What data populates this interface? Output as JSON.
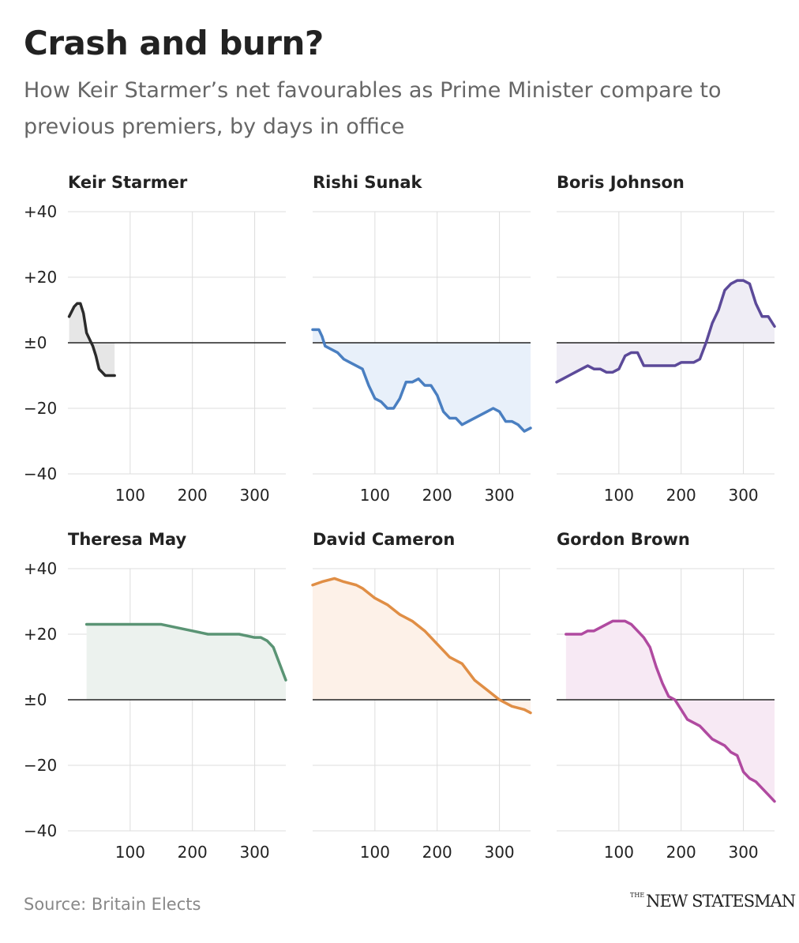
{
  "title": "Crash and burn?",
  "subtitle": "How Keir Starmer’s net favourables as Prime Minister compare to previous premiers, by days in office",
  "source": "Source: Britain Elects",
  "brand": {
    "small": "THE",
    "main": "NEW STATESMAN"
  },
  "chart_data": {
    "type": "line",
    "layout": "small-multiples 3x2",
    "ylim": [
      -40,
      40
    ],
    "yticks": [
      40,
      20,
      0,
      -20,
      -40
    ],
    "ytick_labels": [
      "+40",
      "+20",
      "±0",
      "−20",
      "−40"
    ],
    "xlim": [
      0,
      350
    ],
    "xticks": [
      100,
      200,
      300
    ],
    "xtick_labels": [
      "100",
      "200",
      "300"
    ],
    "grid": true,
    "area_fill": "between line and zero",
    "panels": [
      {
        "name": "Keir Starmer",
        "color": "#2b2b2b",
        "fill": "#e6e6e6",
        "x": [
          2,
          10,
          15,
          20,
          25,
          30,
          35,
          40,
          45,
          50,
          55,
          60,
          65,
          70,
          75
        ],
        "y": [
          8,
          11,
          12,
          12,
          9,
          3,
          1,
          -1,
          -4,
          -8,
          -9,
          -10,
          -10,
          -10,
          -10
        ]
      },
      {
        "name": "Rishi Sunak",
        "color": "#4a7fc1",
        "fill": "#e8f0fa",
        "x": [
          0,
          10,
          15,
          20,
          30,
          40,
          50,
          60,
          70,
          80,
          90,
          100,
          110,
          120,
          130,
          140,
          150,
          160,
          170,
          180,
          190,
          200,
          210,
          220,
          230,
          240,
          250,
          260,
          270,
          280,
          290,
          300,
          310,
          320,
          330,
          340,
          350
        ],
        "y": [
          4,
          4,
          2,
          -1,
          -2,
          -3,
          -5,
          -6,
          -7,
          -8,
          -13,
          -17,
          -18,
          -20,
          -20,
          -17,
          -12,
          -12,
          -11,
          -13,
          -13,
          -16,
          -21,
          -23,
          -23,
          -25,
          -24,
          -23,
          -22,
          -21,
          -20,
          -21,
          -24,
          -24,
          -25,
          -27,
          -26
        ]
      },
      {
        "name": "Boris Johnson",
        "color": "#5c4a99",
        "fill": "#efedf5",
        "x": [
          0,
          10,
          20,
          30,
          40,
          50,
          60,
          70,
          80,
          90,
          100,
          110,
          120,
          130,
          140,
          150,
          160,
          170,
          180,
          190,
          200,
          210,
          220,
          230,
          240,
          250,
          260,
          270,
          280,
          290,
          300,
          310,
          320,
          330,
          340,
          350
        ],
        "y": [
          -12,
          -11,
          -10,
          -9,
          -8,
          -7,
          -8,
          -8,
          -9,
          -9,
          -8,
          -4,
          -3,
          -3,
          -7,
          -7,
          -7,
          -7,
          -7,
          -7,
          -6,
          -6,
          -6,
          -5,
          0,
          6,
          10,
          16,
          18,
          19,
          19,
          18,
          12,
          8,
          8,
          5
        ]
      },
      {
        "name": "Theresa May",
        "color": "#5a9474",
        "fill": "#ecf2ee",
        "x": [
          30,
          50,
          100,
          150,
          175,
          200,
          225,
          250,
          275,
          300,
          310,
          320,
          330,
          340,
          350
        ],
        "y": [
          23,
          23,
          23,
          23,
          22,
          21,
          20,
          20,
          20,
          19,
          19,
          18,
          16,
          11,
          6
        ]
      },
      {
        "name": "David Cameron",
        "color": "#e08e45",
        "fill": "#fdf1e8",
        "x": [
          0,
          15,
          35,
          50,
          70,
          80,
          100,
          120,
          140,
          160,
          180,
          200,
          220,
          240,
          260,
          280,
          300,
          320,
          340,
          350
        ],
        "y": [
          35,
          36,
          37,
          36,
          35,
          34,
          31,
          29,
          26,
          24,
          21,
          17,
          13,
          11,
          6,
          3,
          0,
          -2,
          -3,
          -4
        ]
      },
      {
        "name": "Gordon Brown",
        "color": "#b04aa0",
        "fill": "#f7e9f4",
        "x": [
          15,
          20,
          30,
          40,
          50,
          60,
          70,
          80,
          90,
          100,
          110,
          120,
          130,
          140,
          150,
          160,
          170,
          180,
          190,
          200,
          210,
          220,
          230,
          240,
          250,
          260,
          270,
          280,
          290,
          300,
          310,
          320,
          330,
          340,
          350
        ],
        "y": [
          20,
          20,
          20,
          20,
          21,
          21,
          22,
          23,
          24,
          24,
          24,
          23,
          21,
          19,
          16,
          10,
          5,
          1,
          0,
          -3,
          -6,
          -7,
          -8,
          -10,
          -12,
          -13,
          -14,
          -16,
          -17,
          -22,
          -24,
          -25,
          -27,
          -29,
          -31
        ]
      }
    ]
  }
}
